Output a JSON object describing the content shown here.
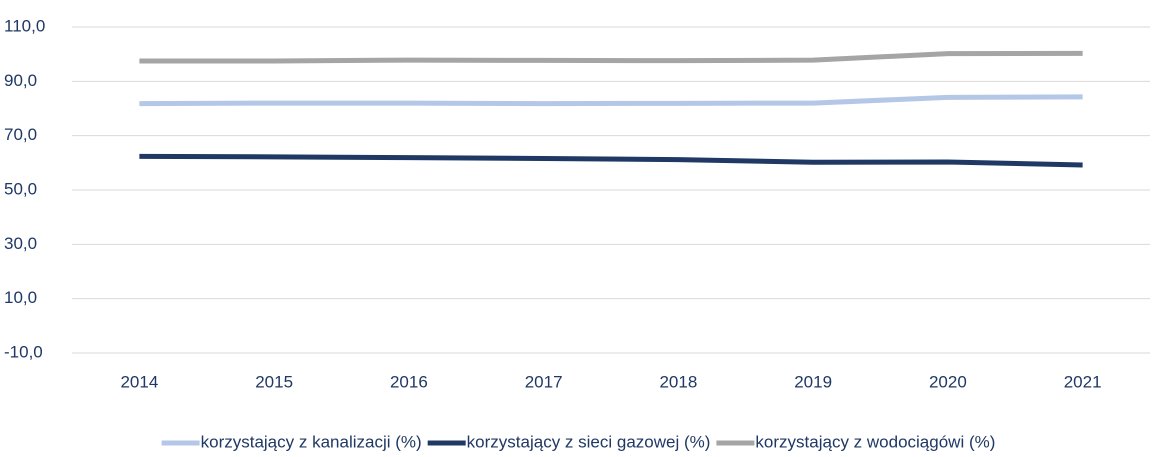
{
  "chart_data": {
    "type": "line",
    "categories": [
      "2014",
      "2015",
      "2016",
      "2017",
      "2018",
      "2019",
      "2020",
      "2021"
    ],
    "series": [
      {
        "name": "korzystający z kanalizacji (%)",
        "color": "#b4c7e7",
        "values": [
          81.8,
          82.0,
          82.0,
          81.8,
          81.9,
          82.0,
          84.1,
          84.3
        ]
      },
      {
        "name": "korzystający z sieci gazowej (%)",
        "color": "#1f3864",
        "values": [
          62.4,
          62.2,
          61.9,
          61.6,
          61.2,
          60.2,
          60.3,
          59.2
        ]
      },
      {
        "name": "korzystający z wodociągówi (%)",
        "color": "#a5a5a5",
        "values": [
          97.5,
          97.5,
          97.8,
          97.7,
          97.6,
          97.8,
          100.2,
          100.3
        ]
      }
    ],
    "ylim": [
      -10,
      110
    ],
    "yticks": [
      {
        "value": -10,
        "label": "-10,0"
      },
      {
        "value": 10,
        "label": "10,0"
      },
      {
        "value": 30,
        "label": "30,0"
      },
      {
        "value": 50,
        "label": "50,0"
      },
      {
        "value": 70,
        "label": "70,0"
      },
      {
        "value": 90,
        "label": "90,0"
      },
      {
        "value": 110,
        "label": "110,0"
      }
    ],
    "grid": true,
    "legend": "bottom"
  }
}
